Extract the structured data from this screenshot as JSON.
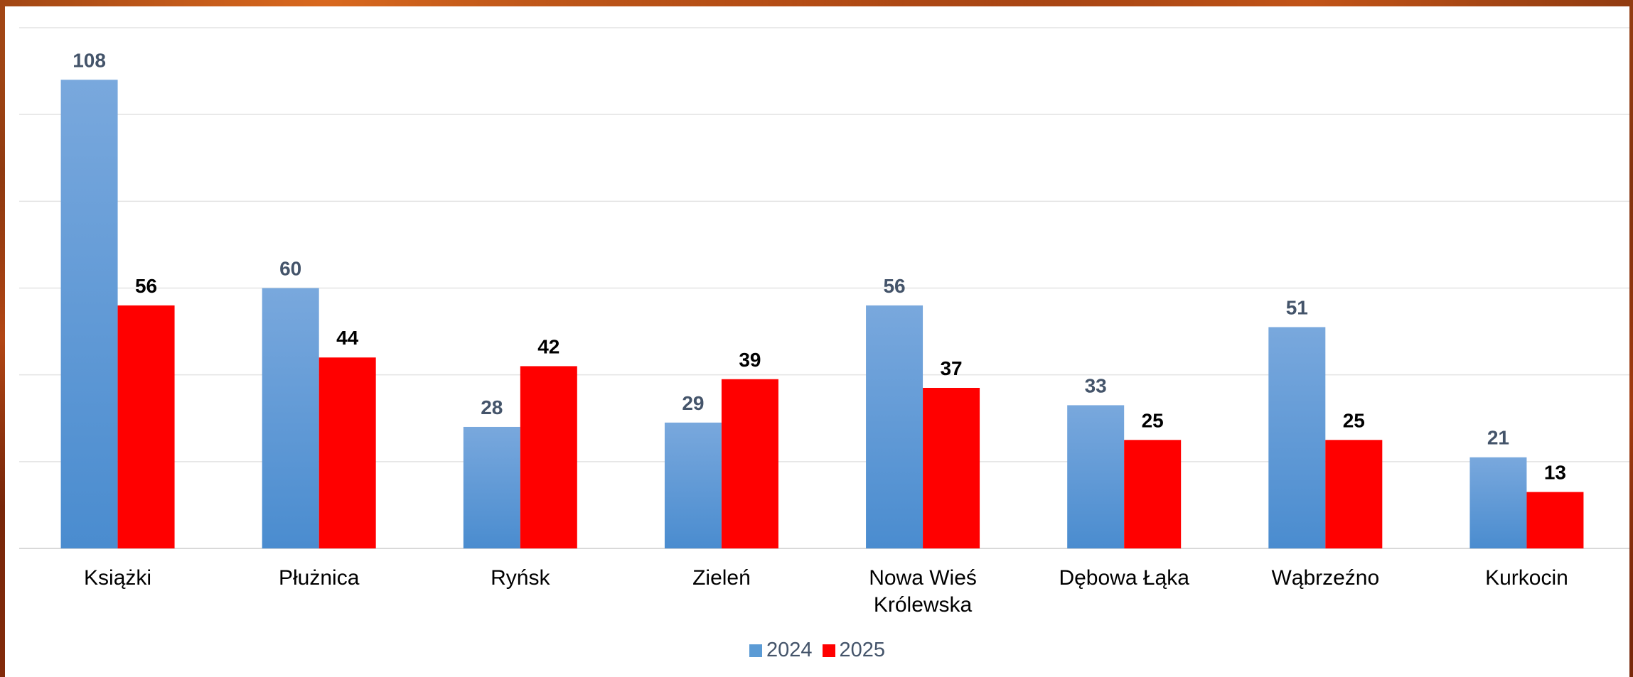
{
  "chart_data": {
    "type": "bar",
    "categories": [
      "Książki",
      "Płużnica",
      "Ryńsk",
      "Zieleń",
      "Nowa Wieś Królewska",
      "Dębowa Łąka",
      "Wąbrzeźno",
      "Kurkocin"
    ],
    "category_lines": [
      [
        "Książki"
      ],
      [
        "Płużnica"
      ],
      [
        "Ryńsk"
      ],
      [
        "Zieleń"
      ],
      [
        "Nowa Wieś",
        "Królewska"
      ],
      [
        "Dębowa Łąka"
      ],
      [
        "Wąbrzeźno"
      ],
      [
        "Kurkocin"
      ]
    ],
    "series": [
      {
        "name": "2024",
        "values": [
          108,
          60,
          28,
          29,
          56,
          33,
          51,
          21
        ],
        "color": "#5b9bd5",
        "label_color": "#44546a"
      },
      {
        "name": "2025",
        "values": [
          56,
          44,
          42,
          39,
          37,
          25,
          25,
          13
        ],
        "color": "#ff0000",
        "label_color": "#000000"
      }
    ],
    "ylim": [
      0,
      120
    ],
    "grid": true,
    "legend": "bottom",
    "data_labels": true
  }
}
